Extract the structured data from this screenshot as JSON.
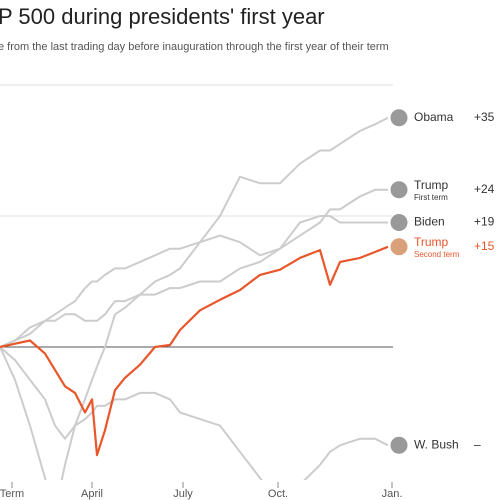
{
  "chart_data": {
    "type": "line",
    "title": "P 500 during presidents' first year",
    "subtitle": "e from the last trading day before inauguration through the first year of their term",
    "xlim": [
      0,
      395
    ],
    "xticks": [
      {
        "value": 12,
        "label": "Term"
      },
      {
        "value": 92,
        "label": "April"
      },
      {
        "value": 183,
        "label": "July"
      },
      {
        "value": 278,
        "label": "Oct."
      },
      {
        "value": 392,
        "label": "Jan."
      }
    ],
    "ylim": [
      -20,
      40
    ],
    "yticks": [
      0,
      20,
      40
    ],
    "grid": true,
    "x": [
      0,
      15,
      30,
      45,
      55,
      65,
      75,
      85,
      92,
      97,
      105,
      115,
      125,
      140,
      155,
      170,
      180,
      200,
      220,
      240,
      260,
      280,
      300,
      320,
      330,
      340,
      360,
      375,
      388
    ],
    "series": [
      {
        "name": "W. Bush",
        "sublabel": null,
        "end_label": "–",
        "color": "#cccccc",
        "values": [
          0,
          -2,
          -5,
          -8,
          -12,
          -14,
          -12,
          -11,
          -10,
          -9,
          -9,
          -8,
          -8,
          -7,
          -7,
          -8,
          -10,
          -11,
          -12,
          -16,
          -20,
          -24,
          -21,
          -18,
          -16,
          -15,
          -14,
          -14,
          -15
        ]
      },
      {
        "name": "Trump",
        "sublabel": "First term",
        "end_label": "+24",
        "color": "#cccccc",
        "values": [
          0,
          1,
          3,
          4,
          4,
          5,
          5,
          4,
          4,
          4,
          5,
          7,
          7,
          8,
          8,
          9,
          9,
          10,
          10,
          12,
          13,
          15,
          17,
          19,
          21,
          21,
          23,
          24,
          24
        ]
      },
      {
        "name": "Biden",
        "sublabel": null,
        "end_label": "+19",
        "color": "#cccccc",
        "values": [
          0,
          1,
          2,
          4,
          5,
          6,
          7,
          9,
          10,
          10,
          11,
          12,
          12,
          13,
          14,
          15,
          15,
          16,
          17,
          16,
          14,
          15,
          19,
          20,
          20,
          19,
          19,
          19,
          19
        ]
      },
      {
        "name": "Obama",
        "sublabel": null,
        "end_label": "+35",
        "color": "#cccccc",
        "values": [
          0,
          -5,
          -12,
          -20,
          -25,
          -18,
          -12,
          -8,
          -5,
          -3,
          0,
          5,
          6,
          8,
          10,
          11,
          12,
          16,
          20,
          26,
          25,
          25,
          28,
          30,
          30,
          31,
          33,
          34,
          35
        ]
      },
      {
        "name": "Trump",
        "sublabel": "Second term",
        "end_label": "+15",
        "color": "#e8562a",
        "values": [
          0,
          0.5,
          1,
          -1,
          -3.5,
          -6,
          -7,
          -10,
          -8,
          -16.5,
          -12.7,
          -6.6,
          -4.7,
          -2.7,
          0,
          0.3,
          2.6,
          5.6,
          7.2,
          8.7,
          11,
          11.8,
          13.6,
          14.8,
          9.5,
          13,
          13.6,
          14.5,
          15.3
        ]
      }
    ]
  }
}
